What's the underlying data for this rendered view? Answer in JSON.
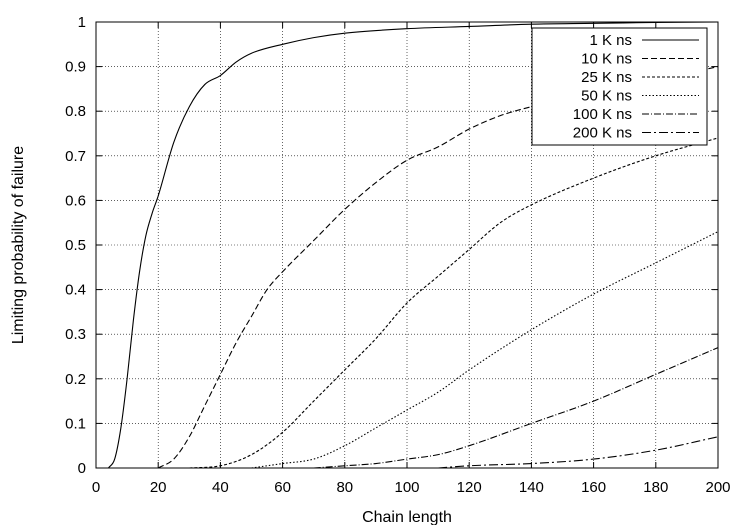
{
  "chart_data": {
    "type": "line",
    "title": "",
    "xlabel": "Chain length",
    "ylabel": "Limiting probability of failure",
    "xlim": [
      0,
      200
    ],
    "ylim": [
      0,
      1
    ],
    "xticks": [
      0,
      20,
      40,
      60,
      80,
      100,
      120,
      140,
      160,
      180,
      200
    ],
    "yticks": [
      0,
      0.1,
      0.2,
      0.3,
      0.4,
      0.5,
      0.6,
      0.7,
      0.8,
      0.9,
      1
    ],
    "grid": true,
    "legend_position": "top-right",
    "series": [
      {
        "name": "1 K ns",
        "dash": "solid",
        "x": [
          4,
          6,
          8,
          10,
          12,
          14,
          16,
          18,
          20,
          25,
          30,
          35,
          40,
          45,
          50,
          60,
          70,
          80,
          100,
          120,
          140,
          160,
          180,
          200
        ],
        "y": [
          0.0,
          0.02,
          0.09,
          0.2,
          0.33,
          0.44,
          0.52,
          0.57,
          0.61,
          0.73,
          0.81,
          0.86,
          0.88,
          0.91,
          0.93,
          0.95,
          0.965,
          0.975,
          0.985,
          0.99,
          0.995,
          0.997,
          0.999,
          1.0
        ]
      },
      {
        "name": "10 K ns",
        "dash": "dashed",
        "x": [
          20,
          25,
          30,
          35,
          40,
          45,
          50,
          55,
          60,
          70,
          80,
          90,
          100,
          110,
          120,
          130,
          140,
          160,
          180,
          200
        ],
        "y": [
          0.0,
          0.02,
          0.07,
          0.14,
          0.21,
          0.28,
          0.34,
          0.4,
          0.44,
          0.51,
          0.58,
          0.64,
          0.69,
          0.72,
          0.76,
          0.79,
          0.81,
          0.84,
          0.87,
          0.9
        ]
      },
      {
        "name": "25 K ns",
        "dash": "short-dash",
        "x": [
          30,
          40,
          50,
          60,
          70,
          80,
          90,
          100,
          110,
          120,
          130,
          140,
          160,
          180,
          200
        ],
        "y": [
          0.0,
          0.005,
          0.03,
          0.08,
          0.15,
          0.22,
          0.29,
          0.37,
          0.43,
          0.49,
          0.55,
          0.59,
          0.65,
          0.7,
          0.74
        ]
      },
      {
        "name": "50 K ns",
        "dash": "dotted",
        "x": [
          50,
          60,
          70,
          80,
          90,
          100,
          110,
          120,
          140,
          160,
          180,
          200
        ],
        "y": [
          0.0,
          0.01,
          0.02,
          0.05,
          0.09,
          0.13,
          0.17,
          0.22,
          0.31,
          0.39,
          0.46,
          0.53
        ]
      },
      {
        "name": "100 K ns",
        "dash": "dash-dot",
        "x": [
          70,
          80,
          90,
          100,
          110,
          120,
          140,
          160,
          180,
          200
        ],
        "y": [
          0.0,
          0.005,
          0.01,
          0.02,
          0.03,
          0.05,
          0.1,
          0.15,
          0.21,
          0.27
        ]
      },
      {
        "name": "200 K ns",
        "dash": "long-dash-dot",
        "x": [
          110,
          120,
          140,
          160,
          180,
          200
        ],
        "y": [
          0.0,
          0.005,
          0.01,
          0.02,
          0.04,
          0.07
        ]
      }
    ]
  }
}
